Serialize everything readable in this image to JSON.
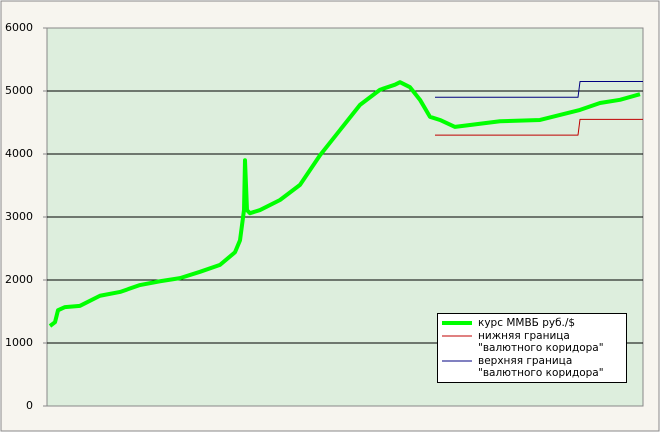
{
  "chart_data": {
    "type": "line",
    "series": [
      {
        "name": "курс ММВБ  руб./$",
        "color": "#00ff00",
        "x": [
          3,
          8,
          11,
          18,
          33,
          53,
          73,
          93,
          113,
          133,
          153,
          173,
          188,
          193,
          197,
          198,
          200,
          203,
          213,
          233,
          253,
          273,
          293,
          313,
          333,
          348,
          353,
          363,
          373,
          383,
          393,
          408,
          433,
          453,
          493,
          513,
          533,
          553,
          573,
          593
        ],
        "values": [
          1270,
          1330,
          1520,
          1570,
          1590,
          1750,
          1810,
          1920,
          1980,
          2030,
          2130,
          2240,
          2440,
          2630,
          3110,
          3900,
          3110,
          3060,
          3110,
          3270,
          3510,
          3980,
          4380,
          4780,
          5020,
          5100,
          5140,
          5060,
          4860,
          4590,
          4540,
          4430,
          4480,
          4520,
          4540,
          4620,
          4700,
          4810,
          4860,
          4950
        ]
      },
      {
        "name": "нижняя граница \"валютного коридора\"",
        "color": "#c00000",
        "x": [
          388,
          531,
          533,
          596
        ],
        "values": [
          4300,
          4300,
          4550,
          4550
        ]
      },
      {
        "name": "верхняя граница \"валютного коридора\"",
        "color": "#000080",
        "x": [
          388,
          531,
          533,
          596
        ],
        "values": [
          4900,
          4900,
          5150,
          5150
        ]
      }
    ],
    "xlim": [
      0,
      596
    ],
    "ylim": [
      0,
      6000
    ],
    "yticks": [
      0,
      1000,
      2000,
      3000,
      4000,
      5000,
      6000
    ],
    "grid": true
  }
}
